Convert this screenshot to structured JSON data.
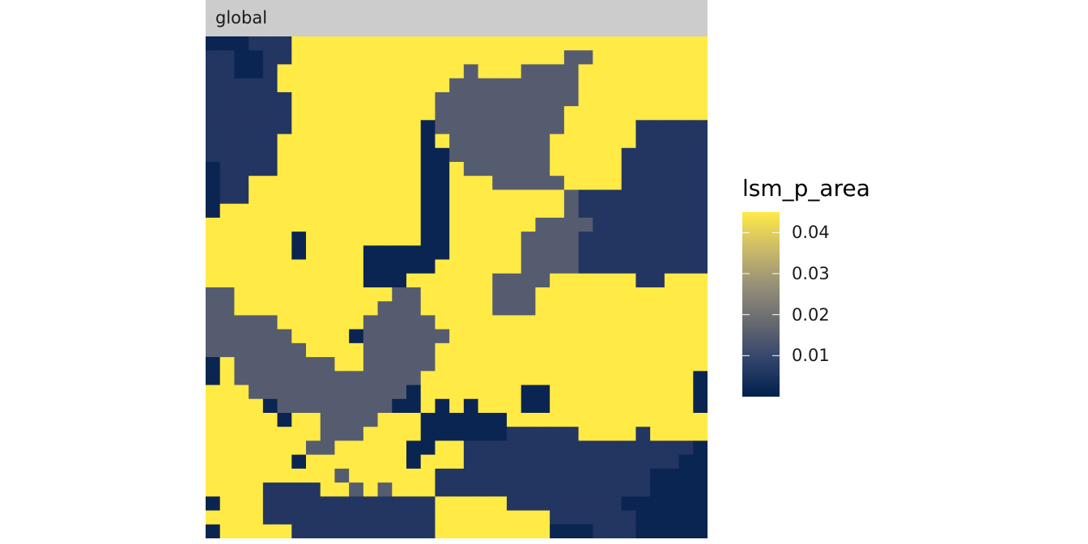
{
  "chart_data": {
    "type": "heatmap",
    "facet_label": "global",
    "legend": {
      "title": "lsm_p_area",
      "ticks": [
        "0.01",
        "0.02",
        "0.03",
        "0.04"
      ],
      "tick_values": [
        0.01,
        0.02,
        0.03,
        0.04
      ],
      "range": [
        0.0,
        0.045
      ],
      "colors": [
        "#00204d",
        "#31446b",
        "#666970",
        "#958f78",
        "#cbba69",
        "#ffea46"
      ],
      "placement": "right"
    },
    "class_colors": {
      "Y": "#ffea46",
      "D": "#0b2552",
      "M": "#233561",
      "G": "#565c6f"
    },
    "class_values": {
      "Y": 0.045,
      "D": 0.001,
      "M": 0.009,
      "G": 0.017
    },
    "rows": [
      "DDDMMMYYYYYYYYYYYYYYYYYYYYYYYYYY",
      "MMDDMMYYYYYYYYYYYYYYYYYYYGGYYYYY",
      "MMDDMYYYYYYYYYYYYYGYYYGGGGYYYYYY",
      "MMMMMYYYYYYYYYYYYGGGGGGGGGYYYYYY",
      "MMMMMMYYYYYYYYYYGGGGGGGGGGYYYYYY",
      "MMMMMMYYYYYYYYYYGGGGGGGGGYYYYYYY",
      "MMMMMMYYYYYYYYYDGGGGGGGGGYYYYYMM",
      "MMMMMYYYYYYYYYYDYGGGGGGGYYYYYYMM",
      "MMMMMYYYYYYYYYYDDGGGGGGGYYYYYMMM",
      "DMMMMYYYYYYYYYYDDYGGGGGGYYYYYMMM",
      "DMMYYYYYYYYYYYYDDYYYGGGGGYYYYMMM",
      "DMMYYYYYYYYYYYYDDYYYYYYYYGMMMMMM",
      "DYYYYYYYYYYYYYYDDYYYYYYYYGMMMMMM",
      "YYYYYYYYYYYYYYYDDYYYYYYGGGGMMMMMMM",
      "YYYYYYDYYYYYYYYDDYYYYYGGGGMMMMMMM",
      "YYYYYYDYYYYDDDDDDYYYYYGGGGMMMMMMM",
      "YYYYYYYYYYYDDDDDYYYYYYGGGGMMMMMMM",
      "YYYYYYYYYYYDDDYYYYYYGGGGYYYYYYMMYYY",
      "GGYYYYYYYYYYYGGYYYYYGGGYYYYYYYYYYYY",
      "GGYYYYYYYYYYGGGYYYYYGGGYYYYYYYYYYYY",
      "GGGGGYYYYYYGGGGGYYYYYYYYYYYYYYYYYYY",
      "GGGGGGYYYYDGGGGGGYYYYYYYYYYYYYYYYYY",
      "GGGGGGGYYYYGGGGGYYYYYYYYYYYYYYYYYYY",
      "DYGGGGGGGYYGGGGGYYYYYYYYYYYYYYYYYYY",
      "DYGGGGGGGGGGGGGYYYYYYYYYYYYYYYYYYYD",
      "YYYGGGGGGGGGGGDYYYYYYYDDYYYYYYYYYYD",
      "YYYYDGGGGGGGGDDYDYDYYYDDYYYYYYYYYYD",
      "YYYYYDYYGGGGYYYDDDDDDYYYYYYYYYYYYYY",
      "YYYYYYYYGGGYYYYDDDDDDMMMMMYYYYMYYYY",
      "YYYYYYYGGYYYYYDDYYMMMMMMMMMMMMMMMMD",
      "YYYYYYDYYYYYYYDYYYMMMMMMMMMMMMMMMDD",
      "YYYYYYYYYGYYYYYYMMMMMMMMMMMMMMMDDDD",
      "YYYYMMMMYYGYGYYYMMMMMMMMMMMMMMMDDDD",
      "DYYYMMMMMMMMMMMMYYYYYMMMMMMMMDDDDDD",
      "YYYYMMMMMMMMMMMMYYYYYYYYMMMMMMDDDDD",
      "DYYYYYMMMMMMMMMMYYYYYYYYDDDMMMDDDDD"
    ]
  }
}
